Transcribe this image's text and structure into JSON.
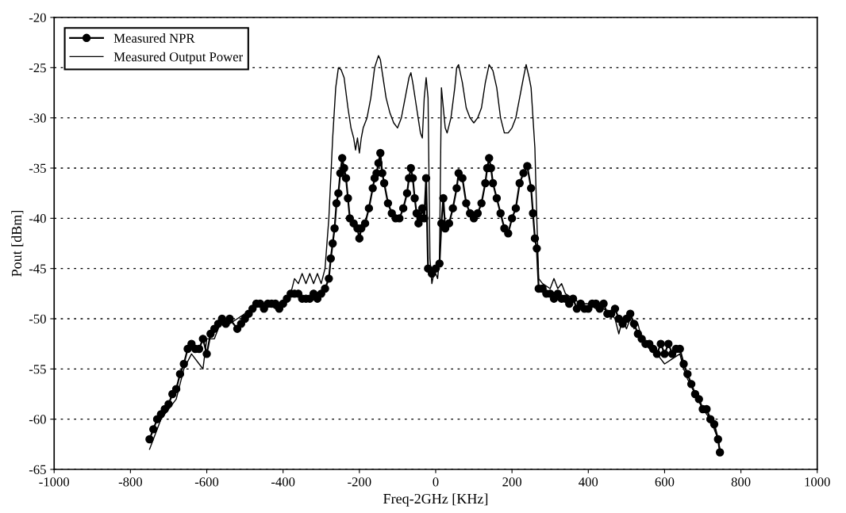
{
  "chart_data": {
    "type": "line",
    "xlabel": "Freq-2GHz [KHz]",
    "ylabel": "Pout [dBm]",
    "xlim": [
      -1000,
      1000
    ],
    "xticks": [
      -1000,
      -800,
      -600,
      -400,
      -200,
      0,
      200,
      400,
      600,
      800,
      1000
    ],
    "ylim": [
      -65,
      -20
    ],
    "yticks": [
      -65,
      -60,
      -55,
      -50,
      -45,
      -40,
      -35,
      -30,
      -25,
      -20
    ],
    "grid": "y",
    "legend": "top left",
    "series": [
      {
        "name": "Measured NPR",
        "color": "#000000",
        "marker": "circle",
        "x": [
          -750,
          -740,
          -730,
          -720,
          -710,
          -700,
          -690,
          -680,
          -670,
          -660,
          -650,
          -640,
          -630,
          -620,
          -610,
          -600,
          -590,
          -580,
          -570,
          -560,
          -550,
          -540,
          -520,
          -510,
          -500,
          -490,
          -480,
          -470,
          -460,
          -450,
          -440,
          -430,
          -420,
          -410,
          -400,
          -390,
          -380,
          -370,
          -360,
          -350,
          -340,
          -330,
          -320,
          -310,
          -300,
          -290,
          -280,
          -275,
          -270,
          -265,
          -260,
          -255,
          -250,
          -245,
          -240,
          -235,
          -230,
          -225,
          -215,
          -205,
          -200,
          -195,
          -185,
          -175,
          -165,
          -160,
          -155,
          -150,
          -145,
          -140,
          -135,
          -125,
          -115,
          -105,
          -95,
          -85,
          -75,
          -70,
          -65,
          -60,
          -55,
          -50,
          -45,
          -40,
          -35,
          -30,
          -25,
          -20,
          -10,
          0,
          10,
          15,
          20,
          25,
          35,
          45,
          55,
          60,
          70,
          80,
          90,
          100,
          110,
          120,
          130,
          135,
          140,
          145,
          150,
          160,
          170,
          180,
          190,
          200,
          210,
          220,
          230,
          240,
          250,
          255,
          260,
          265,
          270,
          280,
          290,
          300,
          310,
          320,
          330,
          340,
          350,
          360,
          370,
          380,
          390,
          400,
          410,
          420,
          430,
          440,
          450,
          460,
          470,
          480,
          490,
          500,
          510,
          520,
          530,
          540,
          550,
          560,
          570,
          580,
          590,
          600,
          610,
          620,
          630,
          640,
          650,
          660,
          670,
          680,
          690,
          700,
          710,
          720,
          730,
          740,
          745
        ],
        "values": [
          -62,
          -61,
          -60,
          -59.5,
          -59,
          -58.5,
          -57.5,
          -57,
          -55.5,
          -54.5,
          -53,
          -52.5,
          -53,
          -53,
          -52,
          -53.5,
          -51.5,
          -51,
          -50.5,
          -50,
          -50.5,
          -50,
          -51,
          -50.5,
          -50,
          -49.5,
          -49,
          -48.5,
          -48.5,
          -49,
          -48.5,
          -48.5,
          -48.5,
          -49,
          -48.5,
          -48,
          -47.5,
          -47.5,
          -47.5,
          -48,
          -48,
          -48,
          -47.5,
          -48,
          -47.5,
          -47,
          -46,
          -44,
          -42.5,
          -41,
          -38.5,
          -37.5,
          -35.5,
          -34,
          -35,
          -36,
          -38,
          -40,
          -40.5,
          -41,
          -42,
          -41,
          -40.5,
          -39,
          -37,
          -36,
          -35.5,
          -34.5,
          -33.5,
          -35.5,
          -36.5,
          -38.5,
          -39.5,
          -40,
          -40,
          -39,
          -37.5,
          -36,
          -35,
          -36,
          -38,
          -39.5,
          -40.5,
          -40,
          -39,
          -40,
          -36,
          -45,
          -45.5,
          -45,
          -44.5,
          -40.5,
          -38,
          -41,
          -40.5,
          -39,
          -37,
          -35.5,
          -36,
          -38.5,
          -39.5,
          -40,
          -39.5,
          -38.5,
          -36.5,
          -35,
          -34,
          -35,
          -36.5,
          -38,
          -39.5,
          -41,
          -41.5,
          -40,
          -39,
          -36.5,
          -35.5,
          -34.8,
          -37,
          -39.5,
          -42,
          -43,
          -47,
          -47,
          -47.5,
          -47.5,
          -48,
          -47.5,
          -48,
          -48,
          -48.5,
          -48,
          -49,
          -48.5,
          -49,
          -49,
          -48.5,
          -48.5,
          -49,
          -48.5,
          -49.5,
          -49.5,
          -49,
          -50,
          -50.5,
          -50,
          -49.5,
          -50.5,
          -51.5,
          -52,
          -52.5,
          -52.5,
          -53,
          -53.5,
          -52.5,
          -53.5,
          -52.5,
          -53.5,
          -53,
          -53,
          -54.5,
          -55.5,
          -56.5,
          -57.5,
          -58,
          -59,
          -59,
          -60,
          -60.5,
          -62,
          -63.3
        ]
      },
      {
        "name": "Measured Output Power",
        "color": "#000000",
        "marker": "none",
        "x": [
          -750,
          -740,
          -720,
          -700,
          -680,
          -660,
          -640,
          -620,
          -610,
          -600,
          -580,
          -560,
          -540,
          -520,
          -500,
          -480,
          -460,
          -440,
          -420,
          -400,
          -380,
          -370,
          -360,
          -350,
          -340,
          -330,
          -320,
          -310,
          -300,
          -290,
          -280,
          -270,
          -262,
          -255,
          -248,
          -240,
          -230,
          -222,
          -215,
          -210,
          -205,
          -200,
          -195,
          -190,
          -180,
          -170,
          -160,
          -150,
          -145,
          -140,
          -130,
          -120,
          -110,
          -100,
          -95,
          -90,
          -80,
          -70,
          -65,
          -60,
          -50,
          -40,
          -35,
          -30,
          -25,
          -20,
          -15,
          -10,
          -5,
          0,
          5,
          10,
          15,
          20,
          25,
          30,
          40,
          50,
          55,
          60,
          70,
          80,
          90,
          100,
          110,
          120,
          130,
          140,
          150,
          160,
          170,
          180,
          190,
          200,
          210,
          220,
          230,
          237,
          245,
          250,
          260,
          265,
          270,
          280,
          300,
          310,
          320,
          330,
          340,
          360,
          380,
          400,
          420,
          440,
          460,
          470,
          480,
          490,
          500,
          510,
          520,
          530,
          540,
          560,
          580,
          600,
          620,
          640,
          650,
          660,
          680,
          700,
          720,
          740,
          745
        ],
        "values": [
          -63,
          -62,
          -60,
          -59,
          -58,
          -55,
          -53.5,
          -54.5,
          -55,
          -52,
          -52,
          -50,
          -50.5,
          -50,
          -49.5,
          -49,
          -48.5,
          -48.5,
          -49,
          -48.5,
          -47.5,
          -46,
          -46.5,
          -45.5,
          -46.5,
          -45.5,
          -46.5,
          -45.5,
          -46.5,
          -45,
          -40,
          -32,
          -27,
          -25,
          -25.2,
          -26,
          -29,
          -31,
          -32,
          -33.2,
          -32,
          -33.5,
          -32,
          -31,
          -30,
          -28,
          -25,
          -23.8,
          -24.2,
          -25.5,
          -28,
          -29.5,
          -30.5,
          -31,
          -30.5,
          -30,
          -28,
          -26,
          -25.5,
          -26.5,
          -29,
          -31.5,
          -32,
          -28,
          -26,
          -28,
          -44,
          -46.5,
          -45.5,
          -45.5,
          -46,
          -44,
          -27,
          -29,
          -31,
          -31.5,
          -30,
          -27,
          -25,
          -24.7,
          -26.5,
          -29,
          -30,
          -30.5,
          -30,
          -29,
          -26.5,
          -24.7,
          -25.3,
          -27,
          -30,
          -31.5,
          -31.5,
          -31,
          -30,
          -28,
          -26,
          -24.7,
          -26,
          -27,
          -33,
          -40,
          -46,
          -46.5,
          -47,
          -46,
          -47,
          -46.5,
          -47.5,
          -48,
          -48.5,
          -48.5,
          -49,
          -49,
          -49.5,
          -50,
          -51.5,
          -50,
          -51,
          -50,
          -51,
          -50.5,
          -52,
          -53,
          -53.5,
          -54.5,
          -54,
          -53.5,
          -55,
          -56,
          -57.5,
          -59,
          -60,
          -62,
          -63
        ]
      }
    ]
  }
}
